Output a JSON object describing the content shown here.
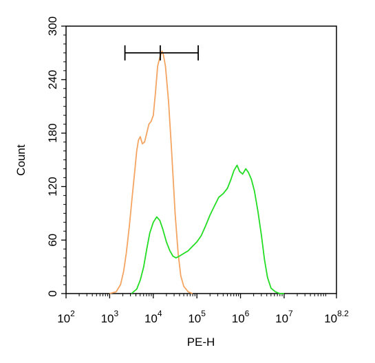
{
  "chart_data": {
    "type": "line",
    "title": "",
    "xlabel": "PE-H",
    "ylabel": "Count",
    "x_scale": "log10",
    "xlim_log10": [
      2,
      8.2
    ],
    "ylim": [
      0,
      300
    ],
    "grid": false,
    "x_ticks": [
      {
        "base": "10",
        "exp": "2",
        "log": 2
      },
      {
        "base": "10",
        "exp": "3",
        "log": 3
      },
      {
        "base": "10",
        "exp": "4",
        "log": 4
      },
      {
        "base": "10",
        "exp": "5",
        "log": 5
      },
      {
        "base": "10",
        "exp": "6",
        "log": 6
      },
      {
        "base": "10",
        "exp": "7",
        "log": 7
      },
      {
        "base": "10",
        "exp": "8.2",
        "log": 8.2
      }
    ],
    "y_ticks": [
      "0",
      "60",
      "120",
      "180",
      "240",
      "300"
    ],
    "series": [
      {
        "color": "#f4a460",
        "points": [
          [
            3.0,
            0
          ],
          [
            3.15,
            2
          ],
          [
            3.25,
            10
          ],
          [
            3.32,
            25
          ],
          [
            3.38,
            45
          ],
          [
            3.45,
            75
          ],
          [
            3.52,
            110
          ],
          [
            3.58,
            140
          ],
          [
            3.62,
            160
          ],
          [
            3.66,
            172
          ],
          [
            3.7,
            176
          ],
          [
            3.75,
            168
          ],
          [
            3.8,
            170
          ],
          [
            3.85,
            180
          ],
          [
            3.9,
            190
          ],
          [
            3.95,
            193
          ],
          [
            4.0,
            200
          ],
          [
            4.05,
            225
          ],
          [
            4.1,
            255
          ],
          [
            4.15,
            265
          ],
          [
            4.2,
            272
          ],
          [
            4.23,
            268
          ],
          [
            4.28,
            255
          ],
          [
            4.35,
            215
          ],
          [
            4.42,
            160
          ],
          [
            4.5,
            90
          ],
          [
            4.57,
            45
          ],
          [
            4.63,
            20
          ],
          [
            4.7,
            8
          ],
          [
            4.8,
            2
          ],
          [
            4.9,
            0
          ]
        ]
      },
      {
        "color": "#22dd22",
        "points": [
          [
            3.5,
            0
          ],
          [
            3.62,
            5
          ],
          [
            3.7,
            15
          ],
          [
            3.78,
            30
          ],
          [
            3.85,
            50
          ],
          [
            3.92,
            68
          ],
          [
            4.0,
            80
          ],
          [
            4.08,
            86
          ],
          [
            4.15,
            82
          ],
          [
            4.22,
            72
          ],
          [
            4.3,
            58
          ],
          [
            4.38,
            48
          ],
          [
            4.45,
            42
          ],
          [
            4.52,
            40
          ],
          [
            4.6,
            42
          ],
          [
            4.7,
            45
          ],
          [
            4.8,
            48
          ],
          [
            4.9,
            53
          ],
          [
            5.0,
            58
          ],
          [
            5.1,
            65
          ],
          [
            5.2,
            76
          ],
          [
            5.3,
            88
          ],
          [
            5.4,
            98
          ],
          [
            5.5,
            108
          ],
          [
            5.6,
            112
          ],
          [
            5.7,
            118
          ],
          [
            5.78,
            128
          ],
          [
            5.85,
            138
          ],
          [
            5.92,
            144
          ],
          [
            5.98,
            137
          ],
          [
            6.05,
            134
          ],
          [
            6.12,
            140
          ],
          [
            6.18,
            136
          ],
          [
            6.25,
            128
          ],
          [
            6.32,
            115
          ],
          [
            6.4,
            92
          ],
          [
            6.48,
            65
          ],
          [
            6.55,
            38
          ],
          [
            6.62,
            18
          ],
          [
            6.7,
            6
          ],
          [
            6.8,
            2
          ],
          [
            6.9,
            0
          ],
          [
            7.0,
            0
          ]
        ]
      }
    ],
    "gate": {
      "x_log10": [
        3.35,
        5.03
      ],
      "marker_log10": 4.16,
      "y": 270
    }
  }
}
